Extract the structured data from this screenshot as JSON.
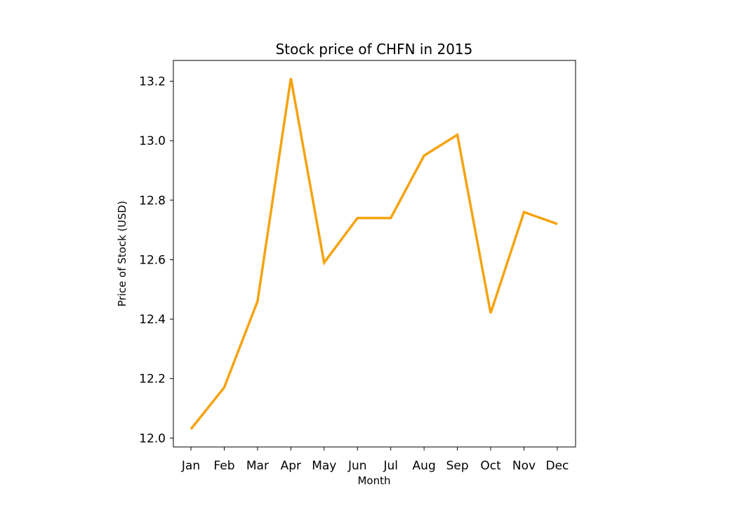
{
  "chart_data": {
    "type": "line",
    "title": "Stock price of CHFN in 2015",
    "xlabel": "Month",
    "ylabel": "Price of Stock (USD)",
    "categories": [
      "Jan",
      "Feb",
      "Mar",
      "Apr",
      "May",
      "Jun",
      "Jul",
      "Aug",
      "Sep",
      "Oct",
      "Nov",
      "Dec"
    ],
    "series": [
      {
        "values": [
          12.03,
          12.17,
          12.46,
          13.21,
          12.59,
          12.74,
          12.74,
          12.95,
          13.02,
          12.42,
          12.76,
          12.72
        ],
        "color": "#f5a30f"
      }
    ],
    "ylim": [
      11.97,
      13.27
    ],
    "yticks": [
      12.0,
      12.2,
      12.4,
      12.6,
      12.8,
      13.0,
      13.2
    ],
    "ytick_labels": [
      "12.0",
      "12.2",
      "12.4",
      "12.6",
      "12.8",
      "13.0",
      "13.2"
    ],
    "grid": false,
    "legend": "none"
  }
}
